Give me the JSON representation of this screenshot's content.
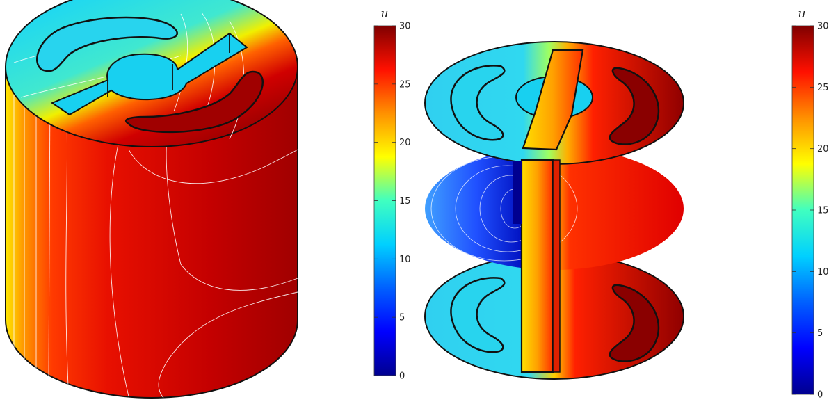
{
  "chart_data": [
    {
      "type": "heatmap",
      "view": "cylinder surface",
      "colorbar": {
        "title": "u",
        "range": [
          0,
          30
        ],
        "ticks": [
          0,
          5,
          10,
          15,
          20,
          25,
          30
        ]
      },
      "colormap": "jet"
    },
    {
      "type": "heatmap",
      "view": "horizontal slices",
      "colorbar": {
        "title": "u",
        "range": [
          0,
          30
        ],
        "ticks": [
          0,
          5,
          10,
          15,
          20,
          25,
          30
        ]
      },
      "colormap": "jet"
    }
  ],
  "colors": {
    "jet": [
      "#00008f",
      "#0000ff",
      "#0080ff",
      "#00ffff",
      "#80ff80",
      "#ffff00",
      "#ff8000",
      "#ff0000",
      "#800000"
    ]
  }
}
